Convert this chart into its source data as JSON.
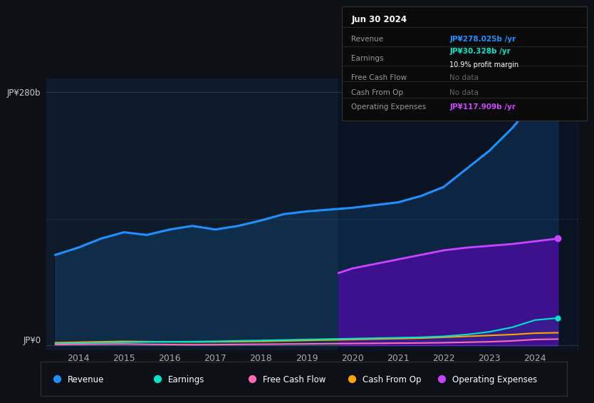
{
  "background_color": "#0d1117",
  "plot_bg_color": "#0d1b2a",
  "title_box_date": "Jun 30 2024",
  "title_box_rows": [
    {
      "label": "Revenue",
      "value": "JP¥278.025b /yr",
      "value_color": "#1e90ff",
      "sub": null
    },
    {
      "label": "Earnings",
      "value": "JP¥30.328b /yr",
      "value_color": "#00e5cc",
      "sub": "10.9% profit margin"
    },
    {
      "label": "Free Cash Flow",
      "value": "No data",
      "value_color": "#666666",
      "sub": null
    },
    {
      "label": "Cash From Op",
      "value": "No data",
      "value_color": "#666666",
      "sub": null
    },
    {
      "label": "Operating Expenses",
      "value": "JP¥117.909b /yr",
      "value_color": "#cc44ff",
      "sub": null
    }
  ],
  "years": [
    2013.5,
    2014.0,
    2014.5,
    2015.0,
    2015.5,
    2016.0,
    2016.5,
    2017.0,
    2017.5,
    2018.0,
    2018.5,
    2019.0,
    2019.5,
    2020.0,
    2020.5,
    2021.0,
    2021.5,
    2022.0,
    2022.5,
    2023.0,
    2023.5,
    2024.0,
    2024.5
  ],
  "revenue": [
    100,
    108,
    118,
    125,
    122,
    128,
    132,
    128,
    132,
    138,
    145,
    148,
    150,
    152,
    155,
    158,
    165,
    175,
    195,
    215,
    240,
    270,
    278
  ],
  "earnings": [
    2,
    2.5,
    3,
    3.5,
    3.8,
    4,
    4.2,
    4.5,
    5,
    5.5,
    6,
    6.5,
    7,
    7.5,
    8,
    8.5,
    9,
    10,
    12,
    15,
    20,
    28,
    30.3
  ],
  "free_cash": [
    1,
    1.2,
    1.4,
    1.6,
    1.2,
    1.0,
    0.8,
    0.9,
    1.1,
    1.3,
    1.5,
    1.7,
    1.9,
    2.1,
    2.3,
    2.5,
    2.7,
    3.0,
    3.5,
    4.0,
    5.0,
    6.5,
    7.0
  ],
  "cash_op": [
    3,
    3.5,
    4,
    4.5,
    4.2,
    4.0,
    3.8,
    4.0,
    4.2,
    4.5,
    5.0,
    5.5,
    6.0,
    6.5,
    7.0,
    7.5,
    8.0,
    9.0,
    10.0,
    11.0,
    12.0,
    13.5,
    14.0
  ],
  "op_expenses_x": [
    2019.7,
    2020.0,
    2020.5,
    2021.0,
    2021.5,
    2022.0,
    2022.5,
    2023.0,
    2023.5,
    2024.0,
    2024.5
  ],
  "op_expenses": [
    80,
    85,
    90,
    95,
    100,
    105,
    108,
    110,
    112,
    115,
    118
  ],
  "revenue_color": "#1e90ff",
  "earnings_color": "#00e5cc",
  "free_cash_color": "#ff69b4",
  "cash_op_color": "#ffa500",
  "op_expenses_color": "#cc44ff",
  "y_label_top": "JP¥280b",
  "y_label_bottom": "JP¥0",
  "x_ticks": [
    2014,
    2015,
    2016,
    2017,
    2018,
    2019,
    2020,
    2021,
    2022,
    2023,
    2024
  ],
  "legend_entries": [
    "Revenue",
    "Earnings",
    "Free Cash Flow",
    "Cash From Op",
    "Operating Expenses"
  ],
  "legend_colors": [
    "#1e90ff",
    "#00e5cc",
    "#ff69b4",
    "#ffa500",
    "#cc44ff"
  ]
}
